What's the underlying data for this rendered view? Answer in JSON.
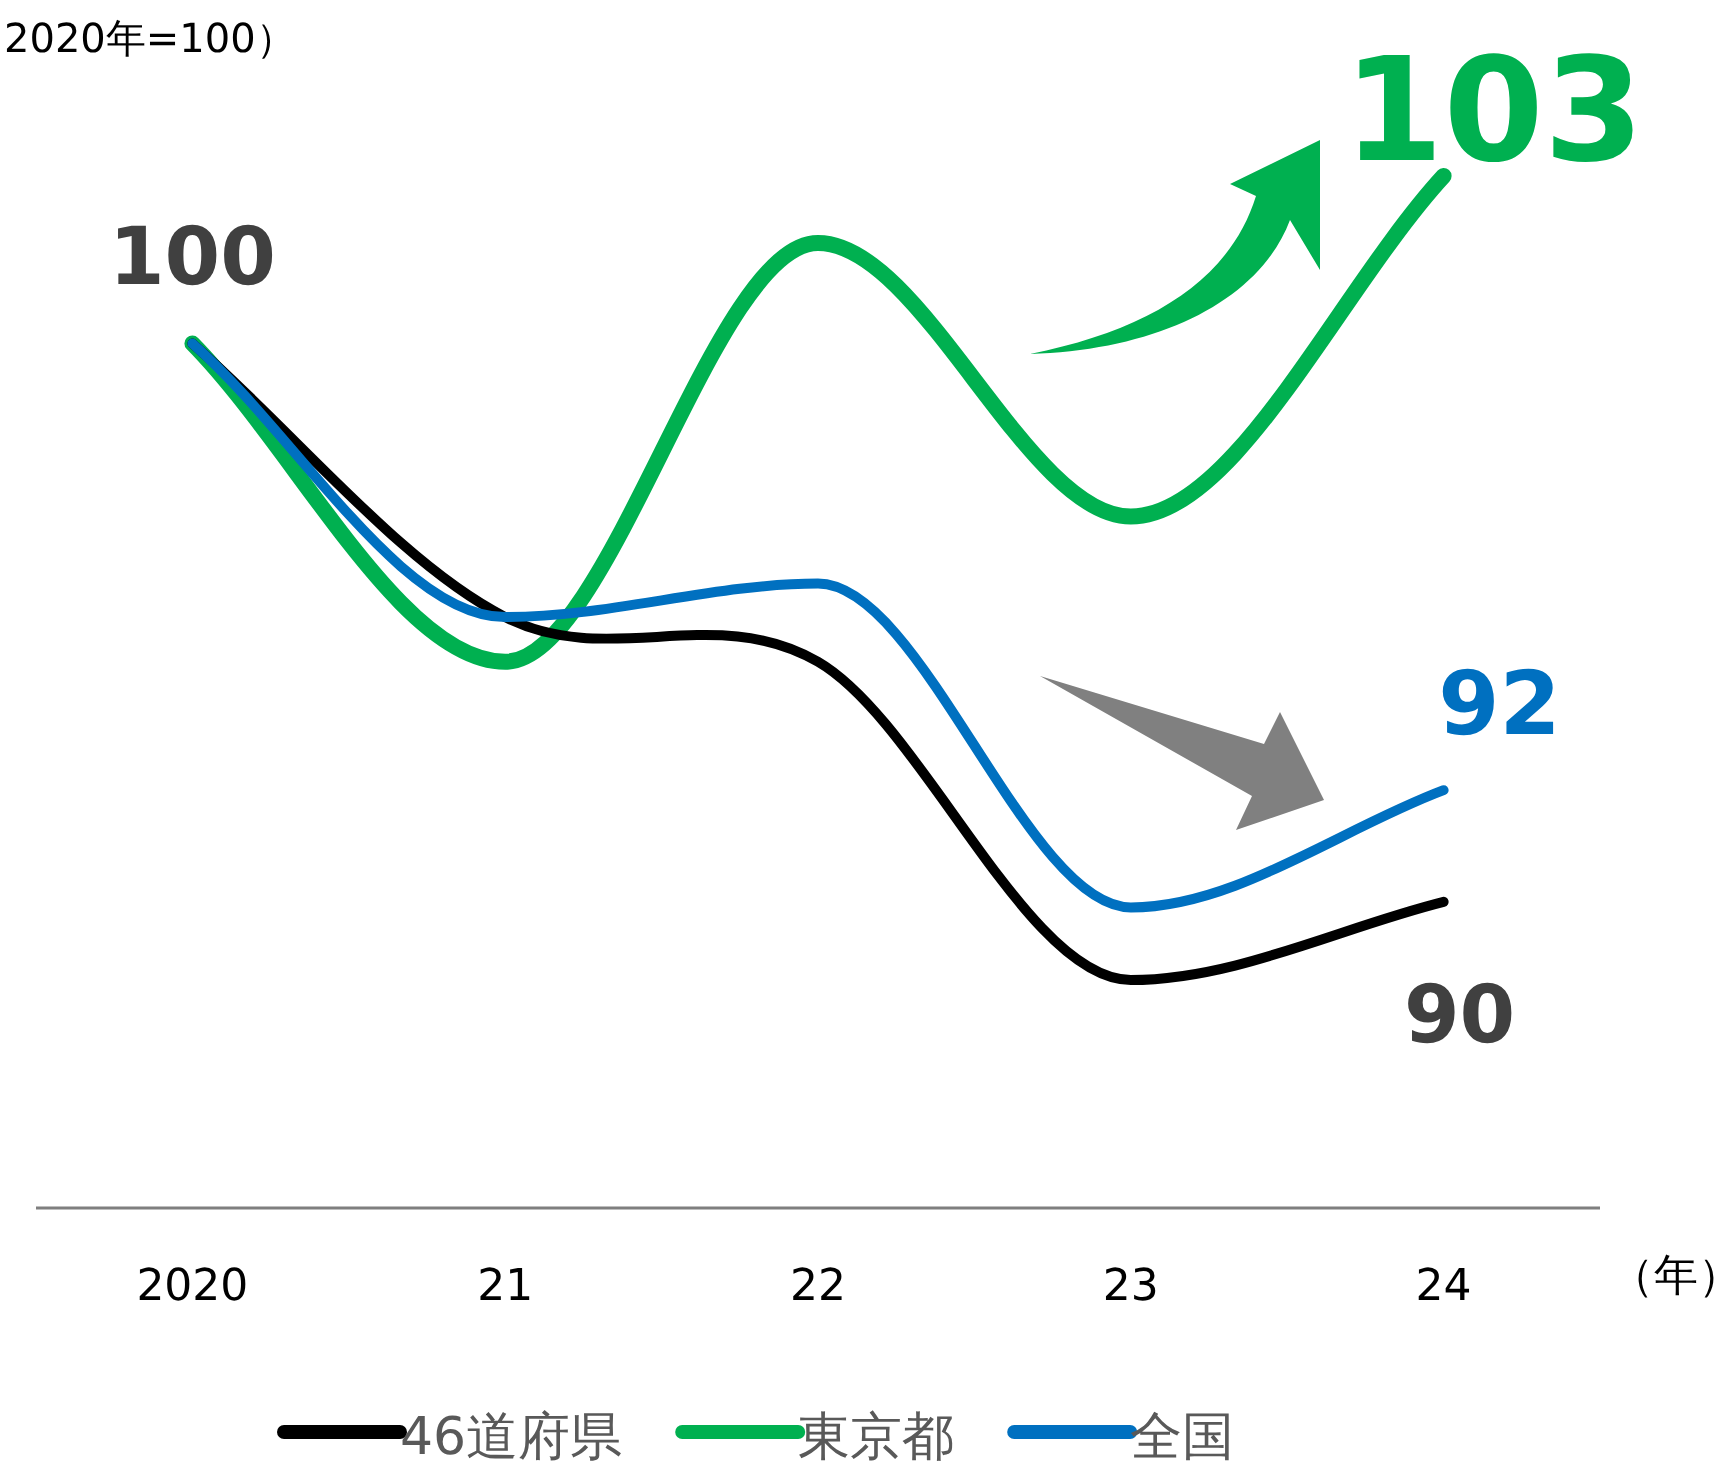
{
  "chart_data": {
    "type": "line",
    "title": "2020年=100）",
    "xlabel": "（年）",
    "categories": [
      "2020",
      "21",
      "22",
      "23",
      "24"
    ],
    "legend": "bottom",
    "grid": false,
    "marker": "none",
    "line_style": "solid",
    "series": [
      {
        "name": "46道府県",
        "color": "#000000",
        "values": [
          100,
          95.1,
          94.3,
          88.6,
          90
        ],
        "value_labels": [
          "100",
          null,
          null,
          null,
          "90"
        ]
      },
      {
        "name": "東京都",
        "color": "#00b050",
        "values": [
          100,
          94.3,
          101.8,
          96.9,
          103
        ],
        "value_labels": [
          null,
          null,
          null,
          null,
          "103"
        ]
      },
      {
        "name": "全国",
        "color": "#0070c0",
        "values": [
          100,
          95.1,
          95.7,
          89.9,
          92
        ],
        "value_labels": [
          null,
          null,
          null,
          null,
          "92"
        ]
      }
    ]
  }
}
